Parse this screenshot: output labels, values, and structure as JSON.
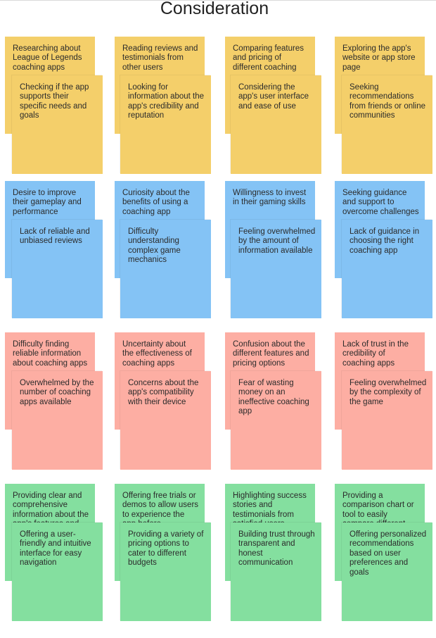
{
  "title": "Consideration",
  "colors": {
    "yellow": "#f4cf6a",
    "blue": "#84c3f5",
    "red": "#fdaea3",
    "green": "#84df9f"
  },
  "rows": [
    {
      "color": "yellow",
      "cards": [
        {
          "back": "Researching about League of Legends coaching apps",
          "front": "Checking if the app supports their specific needs and goals"
        },
        {
          "back": "Reading reviews and testimonials from other users",
          "front": "Looking for information about the app's credibility and reputation"
        },
        {
          "back": "Comparing features and pricing of different coaching",
          "front": "Considering the app's user interface and ease of use"
        },
        {
          "back": "Exploring the app's website or app store page",
          "front": "Seeking recommendations from friends or online communities"
        }
      ]
    },
    {
      "color": "blue",
      "cards": [
        {
          "back": "Desire to improve their gameplay and performance",
          "front": "Lack of reliable and unbiased reviews"
        },
        {
          "back": "Curiosity about the benefits of using a coaching app",
          "front": "Difficulty understanding complex game mechanics"
        },
        {
          "back": "Willingness to invest in their gaming skills",
          "front": "Feeling overwhelmed by the amount of information available"
        },
        {
          "back": "Seeking guidance and support to overcome challenges",
          "front": "Lack of guidance in choosing the right coaching app"
        }
      ]
    },
    {
      "color": "red",
      "cards": [
        {
          "back": "Difficulty finding reliable information about coaching apps",
          "front": "Overwhelmed by the number of coaching apps available"
        },
        {
          "back": "Uncertainty about the effectiveness of coaching apps",
          "front": "Concerns about the app's compatibility with their device"
        },
        {
          "back": "Confusion about the different features and pricing options",
          "front": "Fear of wasting money on an ineffective coaching app"
        },
        {
          "back": "Lack of trust in the credibility of coaching apps",
          "front": "Feeling overwhelmed by the complexity of the game"
        }
      ]
    },
    {
      "color": "green",
      "cards": [
        {
          "back": "Providing clear and comprehensive information about the app's features and benefits",
          "front": "Offering a user-friendly and intuitive interface for easy navigation"
        },
        {
          "back": "Offering free trials or demos to allow users to experience the app before committing",
          "front": "Providing a variety of pricing options to cater to different budgets"
        },
        {
          "back": "Highlighting success stories and testimonials from satisfied users",
          "front": "Building trust through transparent and honest communication"
        },
        {
          "back": "Providing a comparison chart or tool to easily compare different coaching apps",
          "front": "Offering personalized recommendations based on user preferences and goals"
        }
      ]
    }
  ]
}
